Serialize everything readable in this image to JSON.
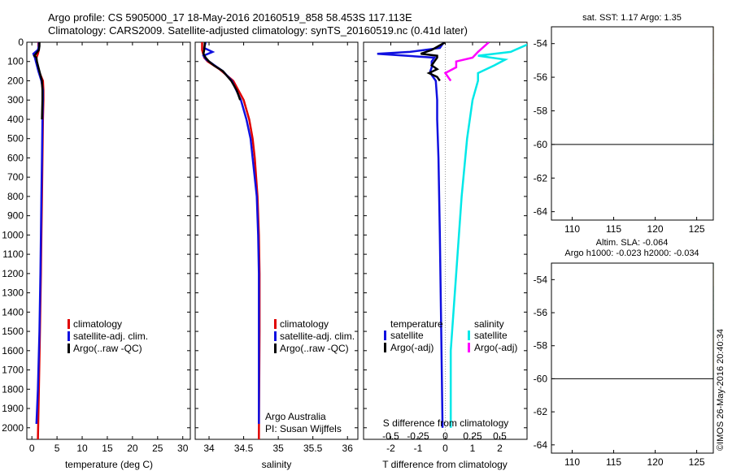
{
  "header": {
    "line1": "Argo profile: CS 5905000_17 18-May-2016 20160519_858 58.453S 117.113E",
    "line2": "Climatology: CARS2009. Satellite-adjusted climatology: synTS_20160519.nc (0.41d later)"
  },
  "credits": {
    "institution": "Argo Australia",
    "pi": "PI: Susan Wijffels",
    "watermark": "©IMOS 26-May-2016 20:40:34"
  },
  "colors": {
    "climatology": "#e00000",
    "satellite": "#1010e0",
    "argo": "#000000",
    "salinity_satellite": "#00e8e8",
    "salinity_argo": "#ff00ff"
  },
  "chart_data": [
    {
      "type": "line",
      "id": "temperature",
      "xlabel": "temperature (deg C)",
      "ylim": [
        0,
        2060
      ],
      "xlim": [
        -1,
        31.5
      ],
      "xticks": [
        "0",
        "5",
        "10",
        "15",
        "20",
        "25",
        "30"
      ],
      "xtick_values": [
        0,
        5,
        10,
        15,
        20,
        25,
        30
      ],
      "yticks": [
        "0",
        "100",
        "200",
        "300",
        "400",
        "500",
        "600",
        "700",
        "800",
        "900",
        "1000",
        "1100",
        "1200",
        "1300",
        "1400",
        "1500",
        "1600",
        "1700",
        "1800",
        "1900",
        "2000"
      ],
      "ytick_values": [
        0,
        100,
        200,
        300,
        400,
        500,
        600,
        700,
        800,
        900,
        1000,
        1100,
        1200,
        1300,
        1400,
        1500,
        1600,
        1700,
        1800,
        1900,
        2000
      ],
      "legend": [
        "climatology",
        "satellite-adj. clim.",
        "Argo(..raw -QC)"
      ],
      "series": [
        {
          "name": "climatology",
          "color": "#e00000",
          "depth": [
            0,
            20,
            40,
            60,
            80,
            100,
            150,
            200,
            250,
            300,
            400,
            600,
            800,
            1000,
            1200,
            1500,
            1800,
            2060
          ],
          "values": [
            1.3,
            1.3,
            1.4,
            1.2,
            0.9,
            0.9,
            1.4,
            2.2,
            2.3,
            2.3,
            2.2,
            2.1,
            2.0,
            1.9,
            1.8,
            1.6,
            1.4,
            1.2
          ]
        },
        {
          "name": "satellite-adj. clim.",
          "color": "#1010e0",
          "depth": [
            0,
            20,
            40,
            60,
            80,
            100,
            150,
            200,
            250,
            300,
            400,
            600,
            800,
            1000,
            1200,
            1500,
            1800,
            1980
          ],
          "values": [
            1.4,
            1.4,
            1.2,
            0.3,
            0.6,
            0.8,
            1.3,
            1.9,
            2.2,
            2.2,
            2.1,
            2.0,
            1.9,
            1.8,
            1.7,
            1.5,
            1.2,
            0.9
          ]
        },
        {
          "name": "Argo(..raw -QC)",
          "color": "#000000",
          "depth": [
            0,
            20,
            40,
            60,
            70,
            80,
            100,
            140,
            200,
            250,
            300,
            400
          ],
          "values": [
            1.5,
            1.5,
            1.4,
            0.8,
            0.5,
            0.9,
            1.0,
            1.4,
            2.0,
            2.1,
            2.1,
            2.0
          ]
        }
      ]
    },
    {
      "type": "line",
      "id": "salinity",
      "xlabel": "salinity",
      "ylim": [
        0,
        2060
      ],
      "xlim": [
        33.8,
        36.15
      ],
      "xticks": [
        "34",
        "34.5",
        "35",
        "35.5",
        "36"
      ],
      "xtick_values": [
        34,
        34.5,
        35,
        35.5,
        36
      ],
      "legend": [
        "climatology",
        "satellite-adj. clim.",
        "Argo(..raw -QC)"
      ],
      "series": [
        {
          "name": "climatology",
          "color": "#e00000",
          "depth": [
            0,
            40,
            80,
            100,
            140,
            200,
            300,
            400,
            500,
            600,
            800,
            1000,
            1200,
            1500,
            2060
          ],
          "values": [
            33.9,
            33.9,
            33.93,
            33.98,
            34.15,
            34.35,
            34.5,
            34.58,
            34.63,
            34.66,
            34.7,
            34.72,
            34.73,
            34.73,
            34.72
          ]
        },
        {
          "name": "satellite-adj. clim.",
          "color": "#1010e0",
          "depth": [
            0,
            30,
            50,
            70,
            90,
            100,
            120,
            150,
            200,
            300,
            400,
            500,
            600,
            800,
            1000,
            1200,
            1500,
            1980
          ],
          "values": [
            33.95,
            33.93,
            34.05,
            33.92,
            33.96,
            34.0,
            34.08,
            34.2,
            34.33,
            34.46,
            34.54,
            34.6,
            34.63,
            34.69,
            34.71,
            34.72,
            34.72,
            34.72
          ]
        },
        {
          "name": "Argo(..raw -QC)",
          "color": "#000000",
          "depth": [
            0,
            40,
            60,
            80,
            100,
            120,
            150,
            200,
            250,
            300
          ],
          "values": [
            33.94,
            33.93,
            33.92,
            33.95,
            34.0,
            34.07,
            34.2,
            34.32,
            34.4,
            34.45
          ]
        }
      ]
    },
    {
      "type": "line",
      "id": "difference",
      "xlabel": "T difference from climatology",
      "top_xlabel": "S difference from climatology",
      "ylim": [
        0,
        2060
      ],
      "xlim": [
        -3,
        3
      ],
      "xticks": [
        "-2",
        "-1",
        "0",
        "1",
        "2"
      ],
      "xtick_values": [
        -2,
        -1,
        0,
        1,
        2
      ],
      "top_xticks": [
        "-0.5",
        "-0.25",
        "0",
        "0.25",
        "0.5"
      ],
      "top_xtick_values": [
        -0.5,
        -0.25,
        0,
        0.25,
        0.5
      ],
      "legend_temperature_title": "temperature",
      "legend_salinity_title": "salinity",
      "legend_temperature": [
        "satellite",
        "Argo(-adj)"
      ],
      "legend_salinity": [
        "satellite",
        "Argo(-adj)"
      ],
      "series": [
        {
          "name": "satellite",
          "group": "temperature",
          "color": "#1010e0",
          "depth": [
            0,
            30,
            50,
            60,
            80,
            100,
            130,
            150,
            170,
            200,
            300,
            400,
            600,
            1000,
            1500,
            2000
          ],
          "values": [
            -0.05,
            -0.2,
            -1.3,
            -2.5,
            -0.4,
            -0.5,
            -0.5,
            -0.55,
            -0.5,
            -0.35,
            -0.3,
            -0.3,
            -0.25,
            -0.2,
            -0.15,
            -0.1
          ]
        },
        {
          "name": "Argo(-adj)",
          "group": "temperature",
          "color": "#000000",
          "depth": [
            0,
            40,
            60,
            70,
            80,
            100,
            120,
            140,
            160,
            180,
            200
          ],
          "values": [
            0.0,
            -0.5,
            -0.9,
            -0.3,
            -0.3,
            -0.4,
            -0.5,
            -0.3,
            -0.6,
            -0.3,
            -0.2
          ]
        },
        {
          "name": "satellite",
          "group": "salinity",
          "color": "#00e8e8",
          "depth": [
            0,
            50,
            70,
            90,
            120,
            160,
            200,
            300,
            500,
            800,
            1200,
            1600,
            2000
          ],
          "values": [
            0.8,
            0.6,
            0.3,
            0.55,
            0.45,
            0.3,
            0.3,
            0.25,
            0.2,
            0.15,
            0.1,
            0.05,
            0.05
          ]
        },
        {
          "name": "Argo(-adj)",
          "group": "salinity",
          "color": "#ff00ff",
          "depth": [
            0,
            50,
            80,
            100,
            130,
            160,
            200
          ],
          "values": [
            0.4,
            0.3,
            0.25,
            0.1,
            0.1,
            0.0,
            0.05
          ]
        }
      ]
    },
    {
      "type": "heatmap",
      "id": "sst_map",
      "title": "sat. SST: 1.17 Argo: 1.35",
      "xlim": [
        107.5,
        127
      ],
      "ylim": [
        -64.5,
        -53
      ],
      "xticks": [
        "110",
        "115",
        "120",
        "125"
      ],
      "xtick_values": [
        110,
        115,
        120,
        125
      ],
      "yticks": [
        "-54",
        "-56",
        "-58",
        "-60",
        "-62",
        "-64"
      ],
      "ytick_values": [
        -54,
        -56,
        -58,
        -60,
        -62,
        -64
      ],
      "data_south_limit": -60
    },
    {
      "type": "heatmap",
      "id": "sla_map",
      "title": "Altim. SLA: -0.064",
      "subtitle": "Argo h1000: -0.023 h2000: -0.034",
      "xlim": [
        107.5,
        127
      ],
      "ylim": [
        -64.5,
        -53
      ],
      "xticks": [
        "110",
        "115",
        "120",
        "125"
      ],
      "xtick_values": [
        110,
        115,
        120,
        125
      ],
      "yticks": [
        "-54",
        "-56",
        "-58",
        "-60",
        "-62",
        "-64"
      ],
      "ytick_values": [
        -54,
        -56,
        -58,
        -60,
        -62,
        -64
      ],
      "data_south_limit": -60
    }
  ]
}
